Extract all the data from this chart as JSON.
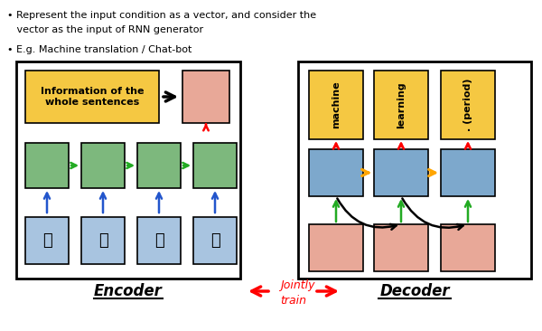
{
  "bg_color": "#ffffff",
  "bullet1_line1": "• Represent the input condition as a vector, and consider the",
  "bullet1_line2": "   vector as the input of RNN generator",
  "bullet2": "• E.g. Machine translation / Chat-bot",
  "encoder_label": "Encoder",
  "decoder_label": "Decoder",
  "jointly_train_line1": "Jointly",
  "jointly_train_line2": "train",
  "info_box_text": "Information of the\nwhole sentences",
  "encoder_chars": [
    "機",
    "器",
    "學",
    "習"
  ],
  "decoder_words": [
    "machine",
    "learning",
    ". (period)"
  ],
  "color_green_box": "#7db87d",
  "color_blue_box": "#7da8cc",
  "color_salmon_box": "#e8a898",
  "color_yellow_box": "#f5c842",
  "color_info_box": "#f5c842",
  "color_blue_char_box": "#a8c4e0"
}
